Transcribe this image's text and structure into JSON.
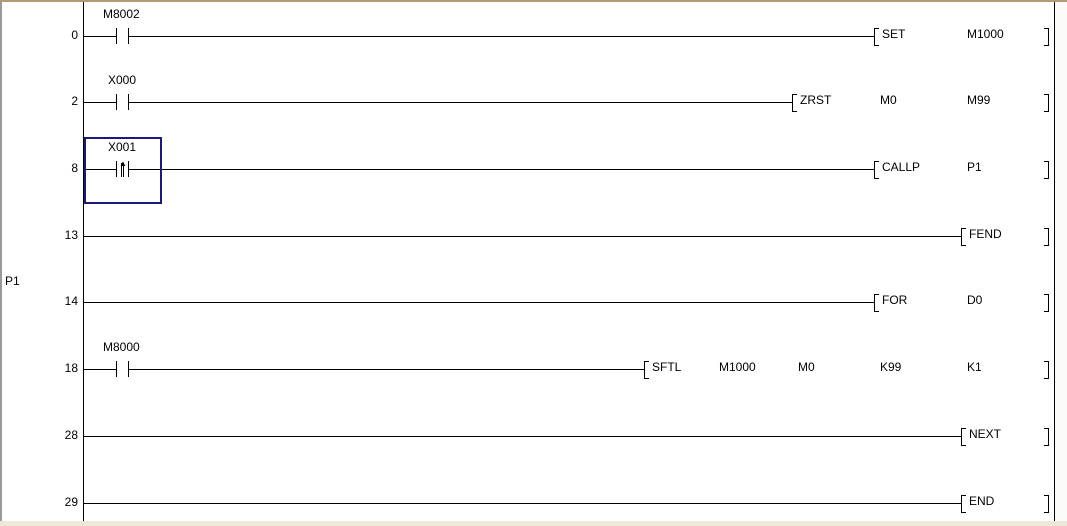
{
  "pointer_label": "P1",
  "rungs": [
    {
      "step": "0",
      "contact": {
        "device": "M8002",
        "type": "no"
      },
      "instruction": [
        "SET",
        "M1000"
      ],
      "start_col": 3
    },
    {
      "step": "2",
      "contact": {
        "device": "X000",
        "type": "no"
      },
      "instruction": [
        "ZRST",
        "M0",
        "M99"
      ],
      "start_col": 2
    },
    {
      "step": "8",
      "contact": {
        "device": "X001",
        "type": "rising"
      },
      "instruction": [
        "CALLP",
        "P1"
      ],
      "start_col": 3,
      "selected": true
    },
    {
      "step": "13",
      "contact": null,
      "instruction": [
        "FEND"
      ],
      "start_col": 4
    },
    {
      "step": "14",
      "contact": null,
      "instruction": [
        "FOR",
        "D0"
      ],
      "start_col": 3,
      "pointer": true
    },
    {
      "step": "18",
      "contact": {
        "device": "M8000",
        "type": "no"
      },
      "instruction": [
        "SFTL",
        "M1000",
        "M0",
        "K99",
        "K1"
      ],
      "start_col": 0
    },
    {
      "step": "28",
      "contact": null,
      "instruction": [
        "NEXT"
      ],
      "start_col": 4
    },
    {
      "step": "29",
      "contact": null,
      "instruction": [
        "END"
      ],
      "start_col": 4
    }
  ]
}
